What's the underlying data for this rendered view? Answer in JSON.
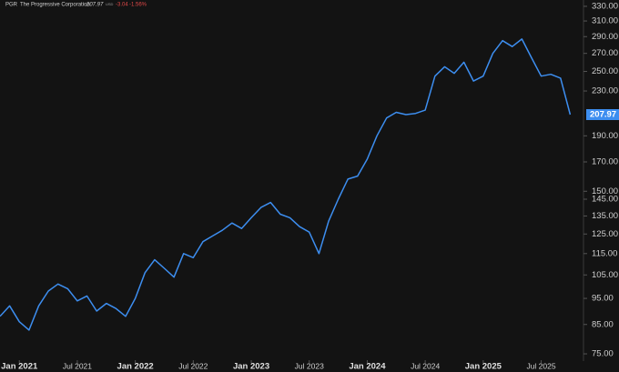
{
  "header": {
    "symbol": "PGR",
    "name": "The Progressive Corporation",
    "price": "207.97",
    "currency": "USD",
    "change": "-3.04",
    "change_pct": "-1.56%"
  },
  "chart_data": {
    "type": "line",
    "color": "#3d8ef0",
    "log_scale": true,
    "x": [
      "2020-11",
      "2020-12",
      "2021-01",
      "2021-02",
      "2021-03",
      "2021-04",
      "2021-05",
      "2021-06",
      "2021-07",
      "2021-08",
      "2021-09",
      "2021-10",
      "2021-11",
      "2021-12",
      "2022-01",
      "2022-02",
      "2022-03",
      "2022-04",
      "2022-05",
      "2022-06",
      "2022-07",
      "2022-08",
      "2022-09",
      "2022-10",
      "2022-11",
      "2022-12",
      "2023-01",
      "2023-02",
      "2023-03",
      "2023-04",
      "2023-05",
      "2023-06",
      "2023-07",
      "2023-08",
      "2023-09",
      "2023-10",
      "2023-11",
      "2023-12",
      "2024-01",
      "2024-02",
      "2024-03",
      "2024-04",
      "2024-05",
      "2024-06",
      "2024-07",
      "2024-08",
      "2024-09",
      "2024-10",
      "2024-11",
      "2024-12",
      "2025-01",
      "2025-02",
      "2025-03",
      "2025-04",
      "2025-05",
      "2025-06",
      "2025-07",
      "2025-08",
      "2025-09",
      "2025-10"
    ],
    "values": [
      88,
      92,
      86,
      83,
      92,
      98,
      101,
      99,
      94,
      96,
      90,
      93,
      91,
      88,
      95,
      106,
      112,
      108,
      104,
      115,
      113,
      121,
      124,
      127,
      131,
      128,
      134,
      140,
      143,
      136,
      134,
      129,
      126,
      115,
      132,
      145,
      158,
      160,
      172,
      190,
      205,
      210,
      208,
      209,
      212,
      245,
      255,
      248,
      260,
      240,
      245,
      270,
      285,
      278,
      287,
      265,
      245,
      247,
      243,
      207.97
    ],
    "xlim": [
      "2020-11",
      "2025-11"
    ],
    "xticks": [
      {
        "value": "2021-01",
        "label": "Jan 2021"
      },
      {
        "value": "2021-07",
        "label": "Jul 2021"
      },
      {
        "value": "2022-01",
        "label": "Jan 2022"
      },
      {
        "value": "2022-07",
        "label": "Jul 2022"
      },
      {
        "value": "2023-01",
        "label": "Jan 2023"
      },
      {
        "value": "2023-07",
        "label": "Jul 2023"
      },
      {
        "value": "2024-01",
        "label": "Jan 2024"
      },
      {
        "value": "2024-07",
        "label": "Jul 2024"
      },
      {
        "value": "2025-01",
        "label": "Jan 2025"
      },
      {
        "value": "2025-07",
        "label": "Jul 2025"
      }
    ],
    "ylim": [
      73,
      339
    ],
    "yticks": [
      {
        "value": 75,
        "label": "75.00"
      },
      {
        "value": 85,
        "label": "85.00"
      },
      {
        "value": 95,
        "label": "95.00"
      },
      {
        "value": 105,
        "label": "105.00"
      },
      {
        "value": 115,
        "label": "115.00"
      },
      {
        "value": 125,
        "label": "125.00"
      },
      {
        "value": 135,
        "label": "135.00"
      },
      {
        "value": 145,
        "label": "145.00"
      },
      {
        "value": 150,
        "label": "150.00"
      },
      {
        "value": 170,
        "label": "170.00"
      },
      {
        "value": 190,
        "label": "190.00"
      },
      {
        "value": 230,
        "label": "230.00"
      },
      {
        "value": 250,
        "label": "250.00"
      },
      {
        "value": 270,
        "label": "270.00"
      },
      {
        "value": 290,
        "label": "290.00"
      },
      {
        "value": 310,
        "label": "310.00"
      },
      {
        "value": 330,
        "label": "330.00"
      }
    ]
  }
}
